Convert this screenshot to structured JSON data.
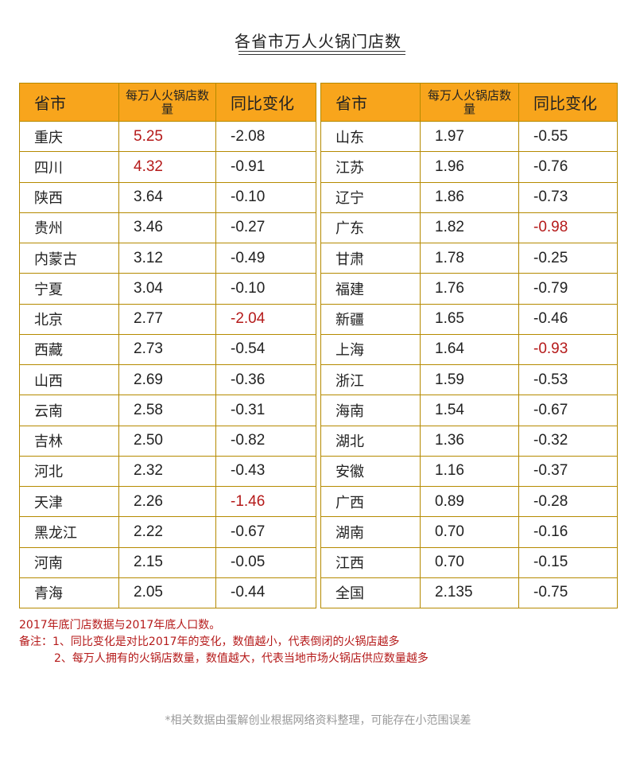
{
  "title": "各省市万人火锅门店数",
  "headers": {
    "province": "省市",
    "count": "每万人火锅店数量",
    "change": "同比变化"
  },
  "left_rows": [
    {
      "province": "重庆",
      "count": "5.25",
      "change": "-2.08",
      "count_red": true,
      "change_red": false
    },
    {
      "province": "四川",
      "count": "4.32",
      "change": "-0.91",
      "count_red": true,
      "change_red": false
    },
    {
      "province": "陕西",
      "count": "3.64",
      "change": "-0.10",
      "count_red": false,
      "change_red": false
    },
    {
      "province": "贵州",
      "count": "3.46",
      "change": "-0.27",
      "count_red": false,
      "change_red": false
    },
    {
      "province": "内蒙古",
      "count": "3.12",
      "change": "-0.49",
      "count_red": false,
      "change_red": false
    },
    {
      "province": "宁夏",
      "count": "3.04",
      "change": "-0.10",
      "count_red": false,
      "change_red": false
    },
    {
      "province": "北京",
      "count": "2.77",
      "change": "-2.04",
      "count_red": false,
      "change_red": true
    },
    {
      "province": "西藏",
      "count": "2.73",
      "change": "-0.54",
      "count_red": false,
      "change_red": false
    },
    {
      "province": "山西",
      "count": "2.69",
      "change": "-0.36",
      "count_red": false,
      "change_red": false
    },
    {
      "province": "云南",
      "count": "2.58",
      "change": "-0.31",
      "count_red": false,
      "change_red": false
    },
    {
      "province": "吉林",
      "count": "2.50",
      "change": "-0.82",
      "count_red": false,
      "change_red": false
    },
    {
      "province": "河北",
      "count": "2.32",
      "change": "-0.43",
      "count_red": false,
      "change_red": false
    },
    {
      "province": "天津",
      "count": "2.26",
      "change": "-1.46",
      "count_red": false,
      "change_red": true
    },
    {
      "province": "黑龙江",
      "count": "2.22",
      "change": "-0.67",
      "count_red": false,
      "change_red": false
    },
    {
      "province": "河南",
      "count": "2.15",
      "change": "-0.05",
      "count_red": false,
      "change_red": false
    },
    {
      "province": "青海",
      "count": "2.05",
      "change": "-0.44",
      "count_red": false,
      "change_red": false
    }
  ],
  "right_rows": [
    {
      "province": "山东",
      "count": "1.97",
      "change": "-0.55",
      "count_red": false,
      "change_red": false
    },
    {
      "province": "江苏",
      "count": "1.96",
      "change": "-0.76",
      "count_red": false,
      "change_red": false
    },
    {
      "province": "辽宁",
      "count": "1.86",
      "change": "-0.73",
      "count_red": false,
      "change_red": false
    },
    {
      "province": "广东",
      "count": "1.82",
      "change": "-0.98",
      "count_red": false,
      "change_red": true
    },
    {
      "province": "甘肃",
      "count": "1.78",
      "change": "-0.25",
      "count_red": false,
      "change_red": false
    },
    {
      "province": "福建",
      "count": "1.76",
      "change": "-0.79",
      "count_red": false,
      "change_red": false
    },
    {
      "province": "新疆",
      "count": "1.65",
      "change": "-0.46",
      "count_red": false,
      "change_red": false
    },
    {
      "province": "上海",
      "count": "1.64",
      "change": "-0.93",
      "count_red": false,
      "change_red": true
    },
    {
      "province": "浙江",
      "count": "1.59",
      "change": "-0.53",
      "count_red": false,
      "change_red": false
    },
    {
      "province": "海南",
      "count": "1.54",
      "change": "-0.67",
      "count_red": false,
      "change_red": false
    },
    {
      "province": "湖北",
      "count": "1.36",
      "change": "-0.32",
      "count_red": false,
      "change_red": false
    },
    {
      "province": "安徽",
      "count": "1.16",
      "change": "-0.37",
      "count_red": false,
      "change_red": false
    },
    {
      "province": "广西",
      "count": "0.89",
      "change": "-0.28",
      "count_red": false,
      "change_red": false
    },
    {
      "province": "湖南",
      "count": "0.70",
      "change": "-0.16",
      "count_red": false,
      "change_red": false
    },
    {
      "province": "江西",
      "count": "0.70",
      "change": "-0.15",
      "count_red": false,
      "change_red": false
    },
    {
      "province": "全国",
      "count": "2.135",
      "change": "-0.75",
      "count_red": false,
      "change_red": false
    }
  ],
  "notes": {
    "line1": "2017年底门店数据与2017年底人口数。",
    "line2": "备注：1、同比变化是对比2017年的变化，数值越小，代表倒闭的火锅店越多",
    "line3": "2、每万人拥有的火锅店数量，数值越大，代表当地市场火锅店供应数量越多"
  },
  "footer": "*相关数据由蛋解创业根据网络资料整理，可能存在小范围误差",
  "colors": {
    "header_bg": "#f8a51c",
    "border": "#b58a00",
    "highlight_red": "#b51a1a",
    "footer_gray": "#999999"
  }
}
